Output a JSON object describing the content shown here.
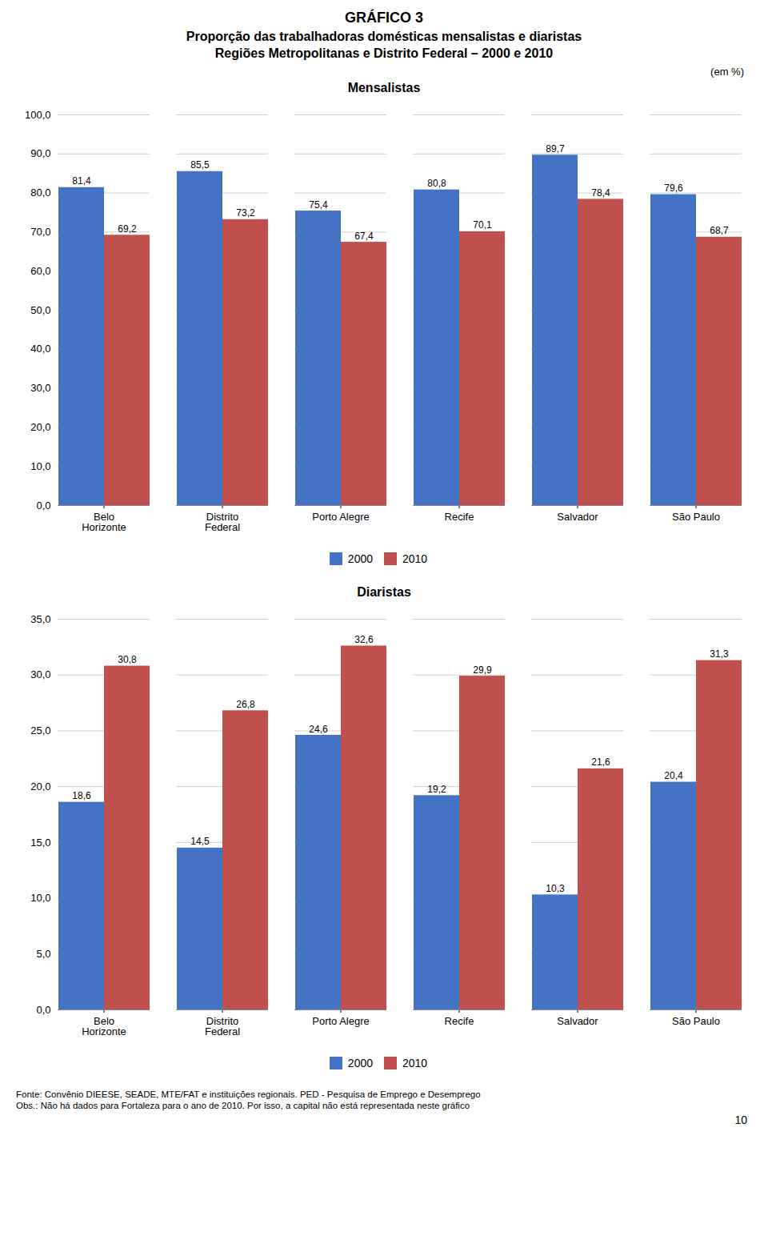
{
  "title": "GRÁFICO 3",
  "subtitle": [
    "Proporção das trabalhadoras domésticas mensalistas e diaristas",
    "Regiões Metropolitanas e Distrito Federal – 2000 e 2010"
  ],
  "caption": [
    "Fonte: Convênio DIEESE, SEADE, MTE/FAT e instituições regionais. PED - Pesquisa de Emprego e Desemprego",
    "Obs.: Não há dados para Fortaleza para o ano de 2010. Por isso, a capital não está representada neste gráfico"
  ],
  "annotations": [
    "10"
  ],
  "chart_data": [
    {
      "type": "bar",
      "title": "Mensalistas",
      "ylabel": "(em %)",
      "categories": [
        "Belo\nHorizonte",
        "Distrito\nFederal",
        "Porto Alegre",
        "Recife",
        "Salvador",
        "São Paulo"
      ],
      "series": [
        {
          "name": "2000",
          "color": "#4472C4",
          "values": [
            81.4,
            85.5,
            75.4,
            80.8,
            89.7,
            79.6
          ],
          "value_labels": [
            "81,4",
            "85,5",
            "75,4",
            "80,8",
            "89,7",
            "79,6"
          ]
        },
        {
          "name": "2010",
          "color": "#C0504D",
          "values": [
            69.2,
            73.2,
            67.4,
            70.1,
            78.4,
            68.7
          ],
          "value_labels": [
            "69,2",
            "73,2",
            "67,4",
            "70,1",
            "78,4",
            "68,7"
          ]
        }
      ],
      "ylim": [
        0,
        100
      ],
      "yticks": [
        {
          "value": 0,
          "label": "0,0"
        },
        {
          "value": 10,
          "label": "10,0"
        },
        {
          "value": 20,
          "label": "20,0"
        },
        {
          "value": 30,
          "label": "30,0"
        },
        {
          "value": 40,
          "label": "40,0"
        },
        {
          "value": 50,
          "label": "50,0"
        },
        {
          "value": 60,
          "label": "60,0"
        },
        {
          "value": 70,
          "label": "70,0"
        },
        {
          "value": 80,
          "label": "80,0"
        },
        {
          "value": 90,
          "label": "90,0"
        },
        {
          "value": 100,
          "label": "100,0"
        }
      ],
      "grid": true,
      "data_labels": true,
      "legend": "bottom"
    },
    {
      "type": "bar",
      "title": "Diaristas",
      "categories": [
        "Belo\nHorizonte",
        "Distrito\nFederal",
        "Porto Alegre",
        "Recife",
        "Salvador",
        "São Paulo"
      ],
      "series": [
        {
          "name": "2000",
          "color": "#4472C4",
          "values": [
            18.6,
            14.5,
            24.6,
            19.2,
            10.3,
            20.4
          ],
          "value_labels": [
            "18,6",
            "14,5",
            "24,6",
            "19,2",
            "10,3",
            "20,4"
          ]
        },
        {
          "name": "2010",
          "color": "#C0504D",
          "values": [
            30.8,
            26.8,
            32.6,
            29.9,
            21.6,
            31.3
          ],
          "value_labels": [
            "30,8",
            "26,8",
            "32,6",
            "29,9",
            "21,6",
            "31,3"
          ]
        }
      ],
      "ylim": [
        0,
        35
      ],
      "yticks": [
        {
          "value": 0,
          "label": "0,0"
        },
        {
          "value": 5,
          "label": "5,0"
        },
        {
          "value": 10,
          "label": "10,0"
        },
        {
          "value": 15,
          "label": "15,0"
        },
        {
          "value": 20,
          "label": "20,0"
        },
        {
          "value": 25,
          "label": "25,0"
        },
        {
          "value": 30,
          "label": "30,0"
        },
        {
          "value": 35,
          "label": "35,0"
        }
      ],
      "grid": true,
      "data_labels": true,
      "legend": "bottom"
    }
  ]
}
